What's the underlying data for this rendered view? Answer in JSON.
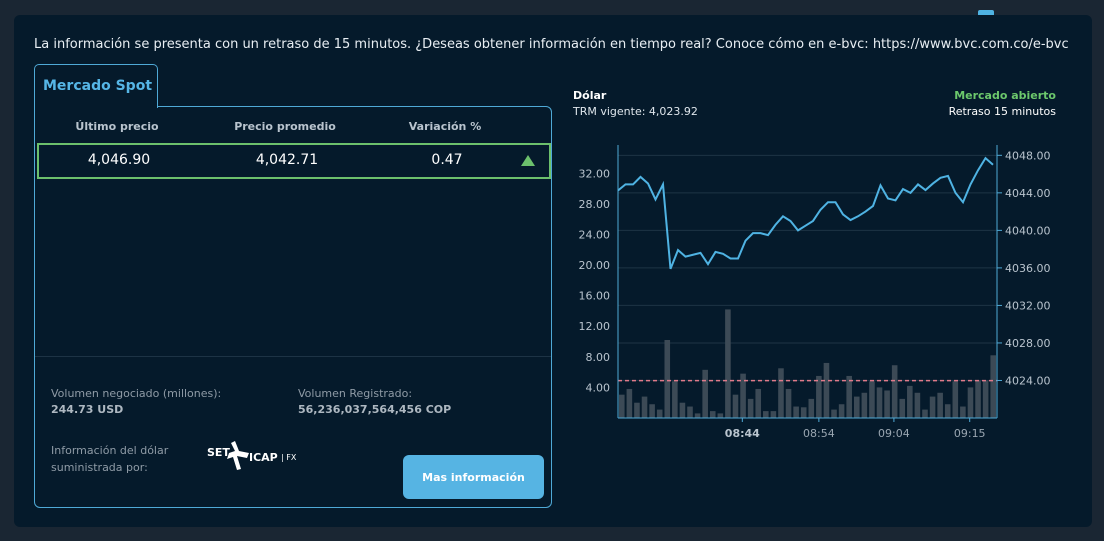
{
  "notice": "La información se presenta con un retraso de 15 minutos. ¿Deseas obtener información en tiempo real? Conoce cómo en e-bvc: https://www.bvc.com.co/e-bvc",
  "spot": {
    "tab_label": "Mercado Spot",
    "columns": [
      "Último precio",
      "Precio promedio",
      "Variación %"
    ],
    "row": {
      "last": "4,046.90",
      "avg": "4,042.71",
      "variation": "0.47",
      "trend_icon": "triangle-up-icon"
    },
    "volume_traded_label": "Volumen negociado (millones):",
    "volume_traded_value": "244.73 USD",
    "volume_registered_label": "Volumen Registrado:",
    "volume_registered_value": "56,236,037,564,456 COP",
    "provider_label_1": "Información del dólar",
    "provider_label_2": "suministrada por:",
    "provider_logo": "SET ICAP | FX",
    "more_button": "Mas información"
  },
  "chart_header": {
    "title": "Dólar",
    "trm": "TRM vigente: 4,023.92",
    "status": "Mercado abierto",
    "delay": "Retraso 15 minutos"
  },
  "colors": {
    "accent": "#56b4e3",
    "up": "#6cc06c",
    "line": "#4fb3e3",
    "bars": "#3c4a56",
    "avg_line": "#e07a8a"
  },
  "chart_data": {
    "type": "bar+line",
    "left_axis": {
      "ticks": [
        "4.00",
        "8.00",
        "12.00",
        "16.00",
        "20.00",
        "24.00",
        "28.00",
        "32.00"
      ],
      "range": [
        0,
        35.7
      ]
    },
    "right_axis": {
      "ticks": [
        "4024.00",
        "4028.00",
        "4032.00",
        "4036.00",
        "4040.00",
        "4044.00",
        "4048.00"
      ],
      "range": [
        4020,
        4049.1
      ]
    },
    "x_ticks": [
      {
        "label": "08:44",
        "index": 16.4,
        "bold": true
      },
      {
        "label": "08:54",
        "index": 26.5
      },
      {
        "label": "09:04",
        "index": 36.4
      },
      {
        "label": "09:15",
        "index": 46.4
      }
    ],
    "grid": true,
    "volume_bars": [
      3.05,
      3.8,
      2.0,
      2.8,
      1.8,
      1.1,
      10.2,
      4.8,
      2.0,
      1.5,
      0.6,
      6.3,
      0.9,
      0.6,
      14.2,
      3.05,
      5.8,
      2.5,
      3.8,
      0.9,
      0.9,
      6.5,
      3.8,
      1.5,
      1.4,
      2.5,
      5.5,
      7.2,
      1.1,
      1.8,
      5.5,
      2.8,
      3.3,
      4.8,
      4.0,
      3.6,
      6.9,
      2.5,
      4.2,
      3.3,
      1.1,
      2.8,
      3.3,
      1.8,
      4.8,
      1.5,
      4.0,
      4.9,
      4.9,
      8.2
    ],
    "volume_average": 4.89,
    "price_line": [
      4044.25,
      4044.9,
      4044.9,
      4045.7,
      4045.0,
      4043.3,
      4044.9,
      4035.9,
      4037.9,
      4037.2,
      4037.4,
      4037.6,
      4036.4,
      4037.7,
      4037.5,
      4037.0,
      4037.0,
      4038.9,
      4039.7,
      4039.7,
      4039.5,
      4040.6,
      4041.5,
      4041.0,
      4040.0,
      4040.5,
      4041.0,
      4042.2,
      4043.0,
      4043.0,
      4041.7,
      4041.1,
      4041.5,
      4042.0,
      4042.6,
      4044.8,
      4043.4,
      4043.2,
      4044.4,
      4044.0,
      4044.9,
      4044.3,
      4045.0,
      4045.6,
      4045.8,
      4044.0,
      4043.0,
      4044.9,
      4046.4,
      4047.7,
      4047.0
    ]
  }
}
